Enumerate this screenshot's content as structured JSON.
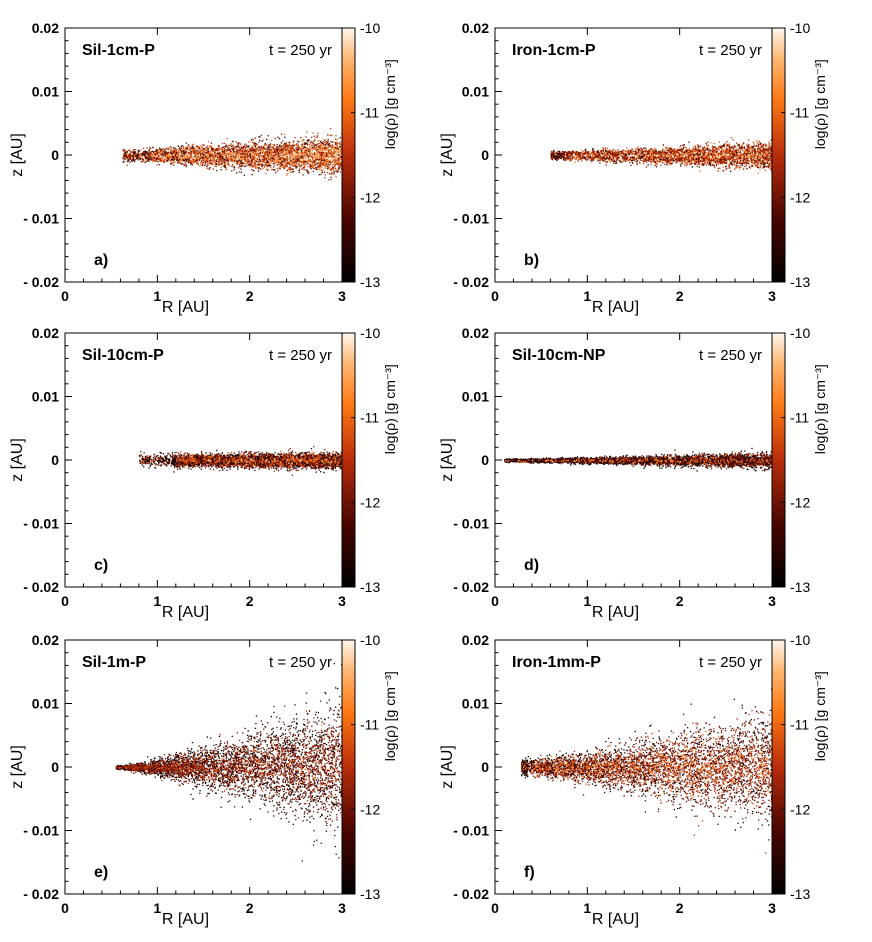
{
  "chart_data": [
    {
      "type": "scatter",
      "panel_label": "a)",
      "title": "Sil-1cm-P",
      "time_label": "t = 250 yr",
      "xlabel": "R [AU]",
      "ylabel": "z [AU]",
      "xlim": [
        0,
        3
      ],
      "ylim": [
        -0.02,
        0.02
      ],
      "x_ticks": [
        "0",
        "1",
        "2",
        "3"
      ],
      "y_ticks": [
        "- 0.02",
        "- 0.01",
        "0",
        "0.01",
        "0.02"
      ],
      "colorbar": {
        "label": "log(ρ) [g cm⁻³]",
        "range": [
          -13,
          -10
        ],
        "ticks": [
          "-10",
          "-11",
          "-12",
          "-13"
        ]
      },
      "distribution": {
        "r_inner": 0.62,
        "r_dense": 0.85,
        "half_thickness_inner": 0.0008,
        "half_thickness_outer": 0.0025,
        "log_rho_typical": -11.0
      }
    },
    {
      "type": "scatter",
      "panel_label": "b)",
      "title": "Iron-1cm-P",
      "time_label": "t = 250 yr",
      "xlabel": "R [AU]",
      "ylabel": "z [AU]",
      "xlim": [
        0,
        3
      ],
      "ylim": [
        -0.02,
        0.02
      ],
      "x_ticks": [
        "0",
        "1",
        "2",
        "3"
      ],
      "y_ticks": [
        "- 0.02",
        "- 0.01",
        "0",
        "0.01",
        "0.02"
      ],
      "colorbar": {
        "label": "log(ρ) [g cm⁻³]",
        "range": [
          -13,
          -10
        ],
        "ticks": [
          "-10",
          "-11",
          "-12",
          "-13"
        ]
      },
      "distribution": {
        "r_inner": 0.6,
        "r_dense": 0.7,
        "half_thickness_inner": 0.0005,
        "half_thickness_outer": 0.0018,
        "log_rho_typical": -11.0
      }
    },
    {
      "type": "scatter",
      "panel_label": "c)",
      "title": "Sil-10cm-P",
      "time_label": "t = 250 yr",
      "xlabel": "R [AU]",
      "ylabel": "z [AU]",
      "xlim": [
        0,
        3
      ],
      "ylim": [
        -0.02,
        0.02
      ],
      "x_ticks": [
        "0",
        "1",
        "2",
        "3"
      ],
      "y_ticks": [
        "- 0.02",
        "- 0.01",
        "0",
        "0.01",
        "0.02"
      ],
      "colorbar": {
        "label": "log(ρ) [g cm⁻³]",
        "range": [
          -13,
          -10
        ],
        "ticks": [
          "-10",
          "-11",
          "-12",
          "-13"
        ]
      },
      "distribution": {
        "r_inner": 0.8,
        "r_dense": 1.15,
        "half_thickness_inner": 0.0008,
        "half_thickness_outer": 0.0011,
        "log_rho_typical": -11.5
      }
    },
    {
      "type": "scatter",
      "panel_label": "d)",
      "title": "Sil-10cm-NP",
      "time_label": "t = 250 yr",
      "xlabel": "R [AU]",
      "ylabel": "z [AU]",
      "xlim": [
        0,
        3
      ],
      "ylim": [
        -0.02,
        0.02
      ],
      "x_ticks": [
        "0",
        "1",
        "2",
        "3"
      ],
      "y_ticks": [
        "- 0.02",
        "- 0.01",
        "0",
        "0.01",
        "0.02"
      ],
      "colorbar": {
        "label": "log(ρ) [g cm⁻³]",
        "range": [
          -13,
          -10
        ],
        "ticks": [
          "-10",
          "-11",
          "-12",
          "-13"
        ]
      },
      "distribution": {
        "r_inner": 0.1,
        "r_dense": 0.15,
        "half_thickness_inner": 0.0002,
        "half_thickness_outer": 0.0011,
        "log_rho_typical": -11.8
      }
    },
    {
      "type": "scatter",
      "panel_label": "e)",
      "title": "Sil-1m-P",
      "time_label": "t = 250 yr",
      "xlabel": "R [AU]",
      "ylabel": "z [AU]",
      "xlim": [
        0,
        3
      ],
      "ylim": [
        -0.02,
        0.02
      ],
      "x_ticks": [
        "0",
        "1",
        "2",
        "3"
      ],
      "y_ticks": [
        "- 0.02",
        "- 0.01",
        "0",
        "0.01",
        "0.02"
      ],
      "colorbar": {
        "label": "log(ρ) [g cm⁻³]",
        "range": [
          -13,
          -10
        ],
        "ticks": [
          "-10",
          "-11",
          "-12",
          "-13"
        ]
      },
      "distribution": {
        "r_inner": 0.55,
        "r_dense": 0.6,
        "half_thickness_inner": 0.0002,
        "half_thickness_outer": 0.009,
        "log_rho_typical": -12.0
      }
    },
    {
      "type": "scatter",
      "panel_label": "f)",
      "title": "Iron-1mm-P",
      "time_label": "t = 250 yr",
      "xlabel": "R [AU]",
      "ylabel": "z [AU]",
      "xlim": [
        0,
        3
      ],
      "ylim": [
        -0.02,
        0.02
      ],
      "x_ticks": [
        "0",
        "1",
        "2",
        "3"
      ],
      "y_ticks": [
        "- 0.02",
        "- 0.01",
        "0",
        "0.01",
        "0.02"
      ],
      "colorbar": {
        "label": "log(ρ) [g cm⁻³]",
        "range": [
          -13,
          -10
        ],
        "ticks": [
          "-10",
          "-11",
          "-12",
          "-13"
        ]
      },
      "distribution": {
        "r_inner": 0.28,
        "r_dense": 0.35,
        "half_thickness_inner": 0.001,
        "half_thickness_outer": 0.0075,
        "log_rho_typical": -11.6
      }
    }
  ]
}
